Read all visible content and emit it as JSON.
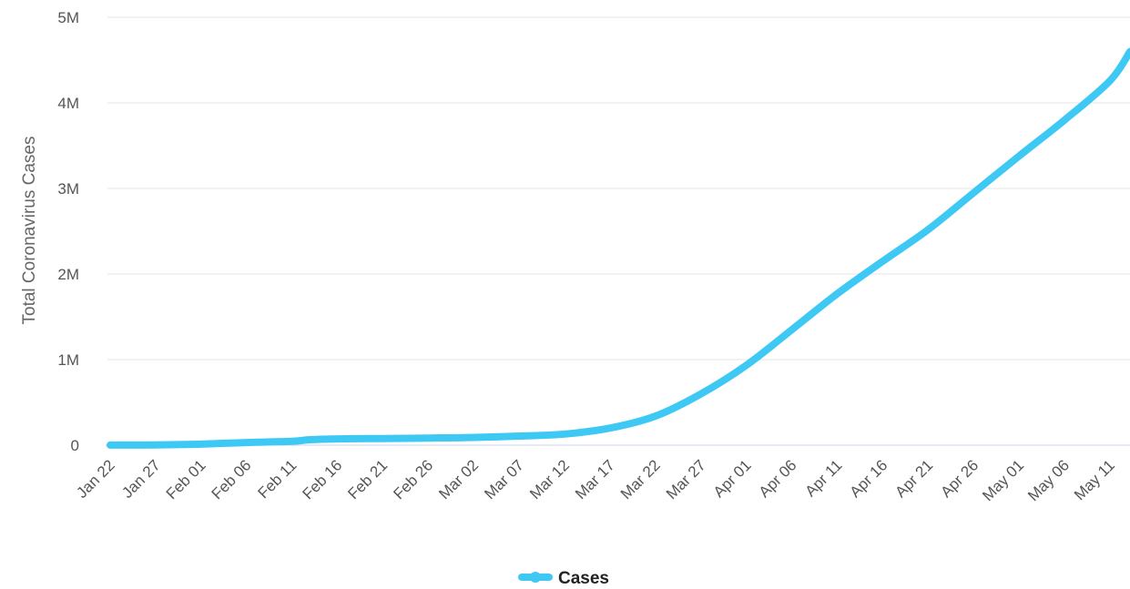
{
  "chart_data": {
    "type": "line",
    "ylabel": "Total Coronavirus Cases",
    "ylim": [
      0,
      5000000
    ],
    "yticks": [
      {
        "value": 0,
        "label": "0"
      },
      {
        "value": 1000000,
        "label": "1M"
      },
      {
        "value": 2000000,
        "label": "2M"
      },
      {
        "value": 3000000,
        "label": "3M"
      },
      {
        "value": 4000000,
        "label": "4M"
      },
      {
        "value": 5000000,
        "label": "5M"
      }
    ],
    "xtick_labels": [
      "Jan 22",
      "Jan 27",
      "Feb 01",
      "Feb 06",
      "Feb 11",
      "Feb 16",
      "Feb 21",
      "Feb 26",
      "Mar 02",
      "Mar 07",
      "Mar 12",
      "Mar 17",
      "Mar 22",
      "Mar 27",
      "Apr 01",
      "Apr 06",
      "Apr 11",
      "Apr 16",
      "Apr 21",
      "Apr 26",
      "May 01",
      "May 06",
      "May 11"
    ],
    "grid": true,
    "legend_position": "bottom-center",
    "series": [
      {
        "name": "Cases",
        "color": "#3ec9f5",
        "x": [
          "Jan 22",
          "Jan 27",
          "Feb 01",
          "Feb 06",
          "Feb 11",
          "Feb 13",
          "Feb 16",
          "Feb 21",
          "Feb 26",
          "Mar 02",
          "Mar 07",
          "Mar 12",
          "Mar 17",
          "Mar 22",
          "Mar 27",
          "Apr 01",
          "Apr 06",
          "Apr 11",
          "Apr 16",
          "Apr 21",
          "Apr 26",
          "May 01",
          "May 06",
          "May 11",
          "May 14"
        ],
        "values": [
          600,
          3000,
          12000,
          31000,
          45000,
          64000,
          73000,
          78000,
          83000,
          90000,
          106000,
          130000,
          200000,
          340000,
          600000,
          935000,
          1350000,
          1770000,
          2150000,
          2520000,
          2950000,
          3380000,
          3800000,
          4260000,
          4600000
        ]
      }
    ]
  }
}
